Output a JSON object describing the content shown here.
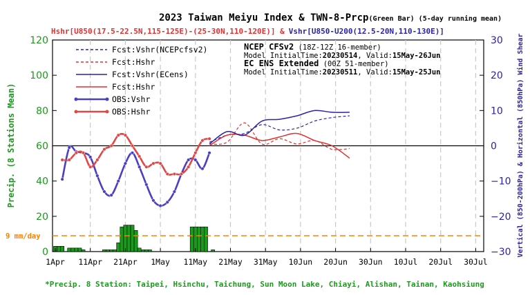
{
  "chart_data": {
    "type": "line",
    "title": "2023 Taiwan Meiyu Index & TWN-8-Prcp",
    "title_suffix": "(Green Bar) (5-day running mean)",
    "subtitle_red": "Hshr[U850(17.5-22.5N,115-125E)-(25-30N,110-120E)] &",
    "subtitle_blue": "Vshr[U850-U200(12.5-20N,110-130E)]",
    "ylabel_left": "Precip. (8 Stations Mean)",
    "ylabel_right": "Vertical (850-200hPa) & Horizontal (850hPa) Wind Shear",
    "footnote": "*Precip. 8 Station: Taipei, Hsinchu, Taichung, Sun Moon Lake, Chiayi, Alishan, Tainan, Kaohsiung",
    "ylim_left": [
      0,
      120
    ],
    "ylim_right": [
      -30,
      30
    ],
    "left_ticks": [
      "0",
      "20",
      "40",
      "60",
      "80",
      "100",
      "120"
    ],
    "right_ticks": [
      "−30",
      "−20",
      "−10",
      "0",
      "10",
      "20",
      "30"
    ],
    "x_tick_labels": [
      "1Apr",
      "11Apr",
      "21Apr",
      "1May",
      "11May",
      "21May",
      "31May",
      "10Jun",
      "20Jun",
      "30Jun",
      "10Jul",
      "20Jul",
      "30Jul"
    ],
    "threshold": {
      "label": "9 mm/day",
      "value": 9,
      "color": "#ff8000"
    },
    "zero_line_right": 0,
    "info_box": {
      "line1_title": "NCEP CFSv2",
      "line1_rest": " (18Z-12Z 16-member)",
      "line2_prefix": "Model InitialTime:",
      "line2_date": "20230514",
      "line2_mid": ", Valid:",
      "line2_valid": "15May-26Jun",
      "line3_title": "EC ENS Extended",
      "line3_rest": " (00Z 51-member)",
      "line4_prefix": "Model InitialTime:",
      "line4_date": "20230511",
      "line4_mid": ", Valid:",
      "line4_valid": "15May-25Jun"
    },
    "legend": [
      {
        "key": "fcst_vshr_ncep",
        "label": "Fcst:Vshr(NCEPcfsv2)",
        "color": "#2a22aa",
        "style": "dashed"
      },
      {
        "key": "fcst_hshr_ncep",
        "label": "Fcst:Hshr",
        "color": "#e03030",
        "style": "dashed"
      },
      {
        "key": "fcst_vshr_ec",
        "label": "Fcst:Vshr(ECens)",
        "color": "#2a22aa",
        "style": "solid"
      },
      {
        "key": "fcst_hshr_ec",
        "label": "Fcst:Hshr",
        "color": "#e03030",
        "style": "solid"
      },
      {
        "key": "obs_vshr",
        "label": "OBS:Vshr",
        "color": "#4a3fc0",
        "style": "marker"
      },
      {
        "key": "obs_hshr",
        "label": "OBS:Hshr",
        "color": "#e04848",
        "style": "marker"
      }
    ],
    "precip_bars": {
      "color": "#1a9a1a",
      "days": [
        1,
        2,
        3,
        4,
        5,
        6,
        7,
        8,
        9,
        10,
        11,
        12,
        13,
        14,
        15,
        16,
        17,
        18,
        19,
        20,
        21,
        22,
        23,
        24,
        25,
        26,
        27,
        28,
        29,
        30,
        31,
        32,
        33,
        34,
        35,
        36,
        37,
        38,
        39,
        40,
        41,
        42,
        43,
        44,
        45,
        46
      ],
      "values": [
        3,
        3,
        3,
        0,
        2,
        2,
        2,
        2,
        1,
        0,
        0,
        0,
        0,
        0,
        1,
        1,
        1,
        1,
        5,
        14,
        15,
        15,
        15,
        12,
        2,
        1,
        1,
        1,
        0,
        0,
        0,
        0,
        0,
        0,
        0,
        0,
        0,
        0,
        0,
        14,
        14,
        14,
        14,
        14,
        0,
        1
      ]
    },
    "series": {
      "obs_vshr": {
        "x": [
          3,
          5,
          7,
          9,
          11,
          13,
          15,
          17,
          19,
          21,
          23,
          25,
          27,
          29,
          31,
          33,
          35,
          37,
          39,
          41,
          43,
          45
        ],
        "y": [
          -9.5,
          -0.5,
          -1.7,
          -2.0,
          -3.2,
          -8.5,
          -13.0,
          -14.0,
          -10.0,
          -5.0,
          -2.0,
          -6.0,
          -11.0,
          -15.5,
          -17.0,
          -16.0,
          -13.0,
          -8.0,
          -4.0,
          -4.0,
          -6.5,
          -2.0
        ]
      },
      "obs_hshr": {
        "x": [
          3,
          5,
          7,
          9,
          11,
          13,
          15,
          17,
          19,
          21,
          23,
          25,
          27,
          29,
          31,
          33,
          35,
          37,
          39,
          41,
          43,
          45
        ],
        "y": [
          -4.0,
          -4.0,
          -2.0,
          -2.0,
          -6.0,
          -4.0,
          -1.0,
          0.0,
          3.0,
          3.0,
          0.0,
          -3.0,
          -6.0,
          -5.0,
          -5.0,
          -8.0,
          -8.0,
          -8.0,
          -6.0,
          -2.0,
          1.5,
          2.0
        ]
      },
      "fcst_vshr_ncep": {
        "x": [
          45,
          50,
          55,
          60,
          65,
          70,
          75,
          80,
          85
        ],
        "y": [
          1.0,
          3.0,
          3.5,
          6.0,
          4.5,
          5.0,
          7.0,
          8.0,
          8.5
        ]
      },
      "fcst_hshr_ncep": {
        "x": [
          45,
          50,
          55,
          60,
          65,
          70,
          75,
          80,
          85
        ],
        "y": [
          0.5,
          1.0,
          6.5,
          0.5,
          2.0,
          0.5,
          1.5,
          -1.0,
          -0.8
        ]
      },
      "fcst_vshr_ec": {
        "x": [
          45,
          50,
          55,
          60,
          65,
          70,
          75,
          80,
          85
        ],
        "y": [
          0.5,
          4.0,
          3.0,
          7.0,
          7.5,
          8.5,
          10.0,
          9.5,
          9.5
        ]
      },
      "fcst_hshr_ec": {
        "x": [
          45,
          50,
          55,
          60,
          65,
          70,
          75,
          80,
          85
        ],
        "y": [
          0.0,
          3.0,
          3.0,
          1.5,
          2.5,
          3.5,
          1.5,
          0.0,
          -3.5
        ]
      }
    }
  }
}
